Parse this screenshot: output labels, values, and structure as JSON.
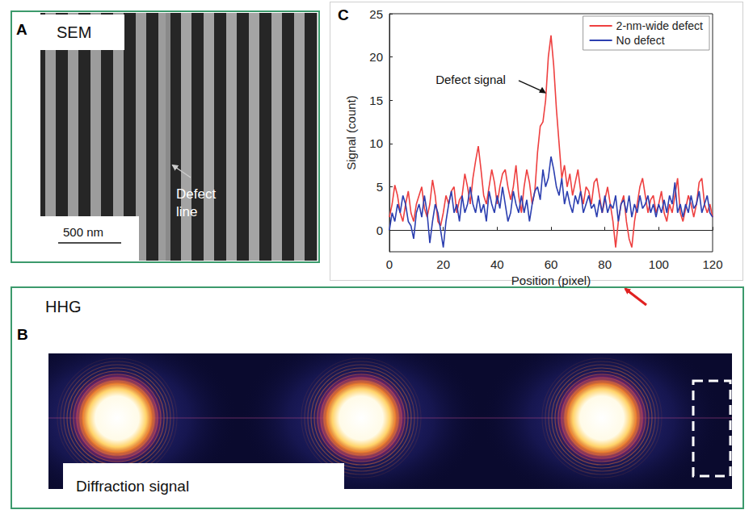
{
  "panels": {
    "A": {
      "letter": "A",
      "title": "SEM",
      "annotation": "Defect line",
      "scale_bar": "500 nm"
    },
    "B": {
      "letter": "B",
      "title": "HHG",
      "caption": "Diffraction signal"
    },
    "C": {
      "letter": "C"
    }
  },
  "chart_data": {
    "type": "line",
    "x_label": "Position (pixel)",
    "y_label": "Signal (count)",
    "annotation": "Defect signal",
    "x": [
      0,
      1,
      2,
      3,
      4,
      5,
      6,
      7,
      8,
      9,
      10,
      11,
      12,
      13,
      14,
      15,
      16,
      17,
      18,
      19,
      20,
      21,
      22,
      23,
      24,
      25,
      26,
      27,
      28,
      29,
      30,
      31,
      32,
      33,
      34,
      35,
      36,
      37,
      38,
      39,
      40,
      41,
      42,
      43,
      44,
      45,
      46,
      47,
      48,
      49,
      50,
      51,
      52,
      53,
      54,
      55,
      56,
      57,
      58,
      59,
      60,
      61,
      62,
      63,
      64,
      65,
      66,
      67,
      68,
      69,
      70,
      71,
      72,
      73,
      74,
      75,
      76,
      77,
      78,
      79,
      80,
      81,
      82,
      83,
      84,
      85,
      86,
      87,
      88,
      89,
      90,
      91,
      92,
      93,
      94,
      95,
      96,
      97,
      98,
      99,
      100,
      101,
      102,
      103,
      104,
      105,
      106,
      107,
      108,
      109,
      110,
      111,
      112,
      113,
      114,
      115,
      116,
      117,
      118,
      119,
      120
    ],
    "series": [
      {
        "name": "2-nm-wide defect",
        "color": "#ee4040",
        "values": [
          1.5,
          3,
          5.2,
          4,
          2,
          1,
          3,
          4.5,
          2,
          1,
          3,
          4,
          5,
          2.5,
          1.5,
          3,
          5.8,
          4,
          1,
          0.5,
          2,
          4,
          3,
          4.5,
          5,
          2,
          3.5,
          4,
          6.5,
          5,
          3,
          6,
          8,
          9.7,
          7,
          4,
          3,
          5,
          7,
          5.5,
          3,
          5,
          6.5,
          7,
          5,
          3.5,
          5,
          7.5,
          4,
          2,
          5,
          7,
          5.5,
          3,
          4.5,
          9,
          12,
          12.5,
          15,
          20,
          22.5,
          19,
          14,
          10,
          6,
          7.5,
          5,
          6.5,
          4,
          5.5,
          7,
          4.5,
          3,
          5,
          4.5,
          3,
          5.5,
          6,
          4,
          2,
          3.5,
          5,
          3,
          1,
          -2,
          1,
          3,
          4,
          1,
          -1,
          -2,
          1,
          3,
          5,
          6,
          4,
          2,
          3.5,
          4,
          2,
          3,
          4.5,
          2,
          1,
          3,
          2,
          4,
          6,
          2,
          1,
          2.5,
          4,
          3,
          1.5,
          3,
          5.5,
          6,
          3,
          2,
          3,
          1.5
        ]
      },
      {
        "name": "No defect",
        "color": "#2c3fb0",
        "values": [
          0,
          2,
          1,
          3,
          2,
          4,
          3,
          1,
          0.5,
          -1,
          2,
          3,
          1.5,
          4,
          2,
          -1.5,
          1,
          3,
          2,
          0,
          -2,
          1,
          3,
          4.5,
          2,
          3,
          1,
          4,
          2,
          3,
          5,
          3,
          2,
          4,
          2,
          3,
          1,
          4.5,
          3,
          2,
          4,
          2.5,
          5,
          3,
          1,
          2,
          4.5,
          3,
          2,
          4,
          2,
          3.5,
          1,
          3,
          4.5,
          5,
          3.5,
          7,
          5,
          6,
          8.5,
          7,
          5,
          4,
          6,
          3,
          4.5,
          3,
          2,
          4,
          3,
          4.5,
          2,
          3,
          4,
          2.5,
          3,
          1.5,
          3.5,
          2,
          4,
          2,
          3,
          2.5,
          4,
          1,
          3,
          3.5,
          2,
          4,
          1.5,
          3,
          2,
          4,
          2.5,
          3,
          4,
          2,
          3,
          1.5,
          3,
          2,
          3.5,
          2,
          4,
          3,
          5.5,
          2,
          3,
          1.5,
          3,
          2,
          4,
          2.5,
          3,
          4.5,
          2,
          3,
          4,
          2,
          1.5
        ]
      }
    ],
    "xlim": [
      0,
      120
    ],
    "xticks": [
      0,
      20,
      40,
      60,
      80,
      100,
      120
    ],
    "ylim": [
      -2.5,
      25
    ],
    "yticks": [
      0,
      5,
      10,
      15,
      20,
      25
    ],
    "grid": false,
    "legend": "upper right"
  }
}
